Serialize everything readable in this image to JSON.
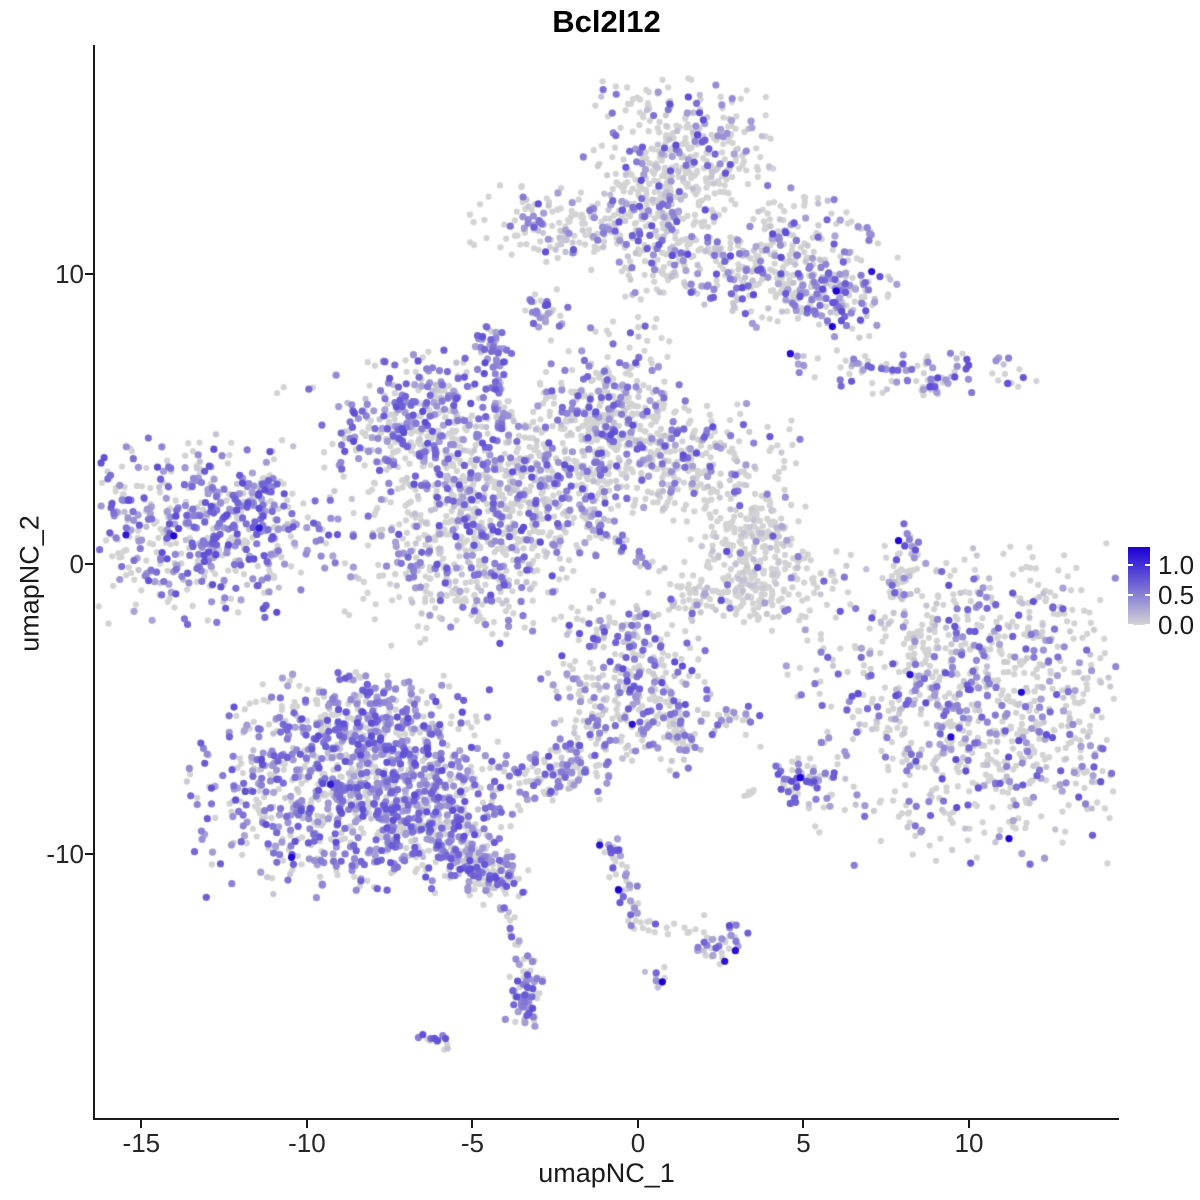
{
  "title": "Bcl2l12",
  "chart_data": {
    "type": "scatter",
    "title": "Bcl2l12",
    "xlabel": "umapNC_1",
    "ylabel": "umapNC_2",
    "xlim": [
      -16.4,
      14.5
    ],
    "ylim": [
      -19.1,
      17.9
    ],
    "grid": false,
    "x_ticks": [
      -15,
      -10,
      -5,
      0,
      5,
      10
    ],
    "x_tick_labels": [
      "-15",
      "-10",
      "-5",
      "0",
      "5",
      "10"
    ],
    "y_ticks": [
      -10,
      0,
      10
    ],
    "y_tick_labels": [
      "-10",
      "0",
      "10"
    ],
    "legend": {
      "position": "right",
      "tick_values": [
        1.0,
        0.5,
        0.0
      ],
      "tick_labels": [
        "1.0",
        "0.5",
        "0.0"
      ],
      "range": [
        0,
        1.3
      ]
    },
    "colors": {
      "zero_expression": "#D3D3D3",
      "max_expression": "#1A00D8",
      "legend_mid": "#7468D5"
    },
    "point_radius_px": 3.6,
    "seed": 42,
    "clusters": [
      {
        "name": "top-cap",
        "k": "blob",
        "x": 1.3,
        "y": 14.2,
        "sx": 1.4,
        "sy": 1.2,
        "rot": 0,
        "n": 340,
        "f": 0.18,
        "d": 0
      },
      {
        "name": "top-stem",
        "k": "blob",
        "x": 0.6,
        "y": 11.8,
        "sx": 0.8,
        "sy": 1.2,
        "rot": 0,
        "n": 170,
        "f": 0.25,
        "d": 0
      },
      {
        "name": "top-left-arm",
        "k": "blob",
        "x": -2.1,
        "y": 11.6,
        "sx": 1.6,
        "sy": 0.65,
        "rot": -5,
        "n": 170,
        "f": 0.25,
        "d": 0
      },
      {
        "name": "top-right-band",
        "k": "blob",
        "x": 3.8,
        "y": 9.9,
        "sx": 2.0,
        "sy": 1.0,
        "rot": -18,
        "n": 300,
        "f": 0.27,
        "d": 1
      },
      {
        "name": "top-right-upper",
        "k": "blob",
        "x": 5.0,
        "y": 11.4,
        "sx": 1.1,
        "sy": 0.8,
        "rot": 0,
        "n": 80,
        "f": 0.3,
        "d": 0
      },
      {
        "name": "top-right-tip",
        "k": "blob",
        "x": 5.8,
        "y": 9.3,
        "sx": 0.65,
        "sy": 0.55,
        "rot": 0,
        "n": 95,
        "f": 0.55,
        "d": 2
      },
      {
        "name": "small-node-upper",
        "k": "blob",
        "x": -2.8,
        "y": 8.6,
        "sx": 0.4,
        "sy": 0.45,
        "rot": 0,
        "n": 30,
        "f": 0.45,
        "d": 0
      },
      {
        "name": "knob",
        "k": "blob",
        "x": -4.4,
        "y": 7.2,
        "sx": 0.32,
        "sy": 0.55,
        "rot": 0,
        "n": 42,
        "f": 0.75,
        "d": 0
      },
      {
        "name": "knob-chain",
        "k": "strand",
        "x": -4.3,
        "y": 6.4,
        "x2": -3.85,
        "y2": 4.4,
        "w": 0.12,
        "n": 22,
        "f": 0.5,
        "d": 0
      },
      {
        "name": "central-left-lobe",
        "k": "blob",
        "x": -6.7,
        "y": 4.9,
        "sx": 1.35,
        "sy": 1.15,
        "rot": 15,
        "n": 310,
        "f": 0.45,
        "d": 0
      },
      {
        "name": "central-core",
        "k": "blob",
        "x": -3.9,
        "y": 2.7,
        "sx": 1.9,
        "sy": 1.6,
        "rot": 0,
        "n": 520,
        "f": 0.32,
        "d": 0
      },
      {
        "name": "central-right-lobe",
        "k": "blob",
        "x": -0.9,
        "y": 4.9,
        "sx": 1.15,
        "sy": 1.7,
        "rot": 0,
        "n": 360,
        "f": 0.3,
        "d": 0
      },
      {
        "name": "central-right-arm",
        "k": "blob",
        "x": 1.6,
        "y": 3.7,
        "sx": 1.5,
        "sy": 1.0,
        "rot": -10,
        "n": 260,
        "f": 0.25,
        "d": 0
      },
      {
        "name": "central-bottom-lobe",
        "k": "blob",
        "x": -4.9,
        "y": 0.3,
        "sx": 1.8,
        "sy": 1.5,
        "rot": 0,
        "n": 430,
        "f": 0.3,
        "d": 0
      },
      {
        "name": "central-diag-strand",
        "k": "strand",
        "x": -2.3,
        "y": 2.3,
        "x2": 0.8,
        "y2": -0.3,
        "w": 0.15,
        "n": 36,
        "f": 0.55,
        "d": 0
      },
      {
        "name": "central-heart-connector",
        "k": "strand",
        "x": 0.0,
        "y": -1.2,
        "x2": -0.5,
        "y2": -2.9,
        "w": 0.2,
        "n": 12,
        "f": 0.3,
        "d": 0
      },
      {
        "name": "mid-c-upper",
        "k": "blob",
        "x": 3.3,
        "y": 1.0,
        "sx": 0.85,
        "sy": 0.75,
        "rot": 0,
        "n": 160,
        "f": 0.05,
        "d": 0
      },
      {
        "name": "mid-c-lower",
        "k": "blob",
        "x": 3.2,
        "y": -0.9,
        "sx": 1.45,
        "sy": 0.6,
        "rot": 8,
        "n": 200,
        "f": 0.04,
        "d": 0
      },
      {
        "name": "right-strand",
        "k": "strand",
        "x": 8.35,
        "y": 1.3,
        "x2": 7.8,
        "y2": -1.2,
        "w": 0.18,
        "n": 42,
        "f": 0.3,
        "d": 1
      },
      {
        "name": "right-streak",
        "k": "blob",
        "x": 8.4,
        "y": 6.6,
        "sx": 1.8,
        "sy": 0.38,
        "rot": -4,
        "n": 100,
        "f": 0.55,
        "d": 1
      },
      {
        "name": "right-streak-sub",
        "k": "strand",
        "x": 8.6,
        "y": 5.9,
        "x2": 9.3,
        "y2": 6.4,
        "w": 0.12,
        "n": 12,
        "f": 0.1,
        "d": 0
      },
      {
        "name": "right-big",
        "k": "blob",
        "x": 10.3,
        "y": -4.8,
        "sx": 2.75,
        "sy": 2.6,
        "rot": 0,
        "n": 980,
        "f": 0.27,
        "d": 4
      },
      {
        "name": "right-big-trail",
        "k": "strand",
        "x": 8.4,
        "y": -0.1,
        "x2": 8.9,
        "y2": -3.2,
        "w": 0.3,
        "n": 14,
        "f": 0.08,
        "d": 0
      },
      {
        "name": "bottomleft-top",
        "k": "blob",
        "x": -8.2,
        "y": -5.4,
        "sx": 1.5,
        "sy": 0.85,
        "rot": 0,
        "n": 250,
        "f": 0.55,
        "d": 0
      },
      {
        "name": "bottomleft-main",
        "k": "blob",
        "x": -8.7,
        "y": -7.9,
        "sx": 2.3,
        "sy": 1.7,
        "rot": 0,
        "n": 800,
        "f": 0.58,
        "d": 2
      },
      {
        "name": "bottomleft-right",
        "k": "blob",
        "x": -6.6,
        "y": -8.6,
        "sx": 1.3,
        "sy": 1.1,
        "rot": -20,
        "n": 270,
        "f": 0.5,
        "d": 0
      },
      {
        "name": "bottomleft-tail",
        "k": "strand",
        "x": -5.6,
        "y": -9.7,
        "x2": -3.9,
        "y2": -11.1,
        "w": 0.45,
        "n": 170,
        "f": 0.45,
        "d": 0
      },
      {
        "name": "bottomleft-drip",
        "k": "strand",
        "x": -4.0,
        "y": -11.5,
        "x2": -3.6,
        "y2": -13.6,
        "w": 0.15,
        "n": 11,
        "f": 0.1,
        "d": 0
      },
      {
        "name": "heart",
        "k": "blob",
        "x": -0.3,
        "y": -4.2,
        "sx": 1.25,
        "sy": 1.5,
        "rot": 0,
        "n": 330,
        "f": 0.38,
        "d": 1
      },
      {
        "name": "heart-tail",
        "k": "strand",
        "x": 0.9,
        "y": -5.0,
        "x2": 1.4,
        "y2": -6.3,
        "w": 0.3,
        "n": 50,
        "f": 0.3,
        "d": 0
      },
      {
        "name": "heart-connector",
        "k": "strand",
        "x": -1.5,
        "y": -5.8,
        "x2": -2.3,
        "y2": -7.0,
        "w": 0.15,
        "n": 14,
        "f": 0.4,
        "d": 0
      },
      {
        "name": "small-left-node",
        "k": "blob",
        "x": -2.6,
        "y": -7.3,
        "sx": 0.85,
        "sy": 0.5,
        "rot": 10,
        "n": 115,
        "f": 0.5,
        "d": 0
      },
      {
        "name": "mini-node-1",
        "k": "blob",
        "x": 2.9,
        "y": -5.3,
        "sx": 0.4,
        "sy": 0.28,
        "rot": 0,
        "n": 24,
        "f": 0.45,
        "d": 0
      },
      {
        "name": "mini-node-2",
        "k": "blob",
        "x": 3.4,
        "y": -7.8,
        "sx": 0.18,
        "sy": 0.15,
        "rot": 0,
        "n": 6,
        "f": 0.4,
        "d": 0
      },
      {
        "name": "purple-node",
        "k": "blob",
        "x": 5.0,
        "y": -7.6,
        "sx": 0.45,
        "sy": 0.4,
        "rot": 0,
        "n": 46,
        "f": 0.7,
        "d": 1
      },
      {
        "name": "center-strand",
        "k": "strand",
        "x": -0.9,
        "y": -9.5,
        "x2": 0.0,
        "y2": -12.4,
        "w": 0.2,
        "n": 42,
        "f": 0.55,
        "d": 2
      },
      {
        "name": "center-branch",
        "k": "strand",
        "x": 0.1,
        "y": -12.5,
        "x2": 1.6,
        "y2": -12.7,
        "w": 0.15,
        "n": 12,
        "f": 0.15,
        "d": 0
      },
      {
        "name": "branch-end",
        "k": "blob",
        "x": 2.5,
        "y": -13.0,
        "sx": 0.4,
        "sy": 0.42,
        "rot": 0,
        "n": 36,
        "f": 0.5,
        "d": 2
      },
      {
        "name": "dot-node",
        "k": "blob",
        "x": 0.6,
        "y": -14.4,
        "sx": 0.18,
        "sy": 0.2,
        "rot": 0,
        "n": 9,
        "f": 0.5,
        "d": 1
      },
      {
        "name": "banana",
        "k": "strand",
        "x": -3.3,
        "y": -13.7,
        "x2": -3.5,
        "y2": -15.6,
        "w": 0.26,
        "n": 70,
        "f": 0.55,
        "d": 0
      },
      {
        "name": "bottom-tiny",
        "k": "blob",
        "x": -6.1,
        "y": -16.5,
        "sx": 0.26,
        "sy": 0.2,
        "rot": 0,
        "n": 13,
        "f": 0.55,
        "d": 0
      },
      {
        "name": "left-big",
        "k": "blob",
        "x": -13.1,
        "y": 1.2,
        "sx": 2.1,
        "sy": 1.55,
        "rot": 0,
        "n": 540,
        "f": 0.6,
        "d": 2
      },
      {
        "name": "left-spike",
        "k": "strand",
        "x": -12.0,
        "y": 1.9,
        "x2": -11.1,
        "y2": 2.9,
        "w": 0.18,
        "n": 26,
        "f": 0.6,
        "d": 0
      },
      {
        "name": "left-point",
        "k": "strand",
        "x": -11.6,
        "y": 1.1,
        "x2": -10.8,
        "y2": 1.25,
        "w": 0.14,
        "n": 16,
        "f": 0.5,
        "d": 1
      },
      {
        "name": "strays",
        "k": "points",
        "pts": [
          [
            -10.7,
            6.1
          ],
          [
            -10.9,
            5.9
          ],
          [
            -14.2,
            -1.3
          ],
          [
            -14.0,
            -1.5
          ],
          [
            3.2,
            -2.0
          ],
          [
            4.05,
            -2.3
          ],
          [
            8.1,
            -2.0
          ],
          [
            8.2,
            -2.4
          ],
          [
            -3.9,
            -12.0
          ],
          [
            0.8,
            -13.9
          ],
          [
            2.0,
            -12.1
          ],
          [
            5.2,
            -6.7
          ],
          [
            3.7,
            -6.3
          ],
          [
            -0.1,
            -2.2
          ],
          [
            -1.2,
            -2.6
          ]
        ],
        "f": 0,
        "d": 0
      }
    ]
  }
}
